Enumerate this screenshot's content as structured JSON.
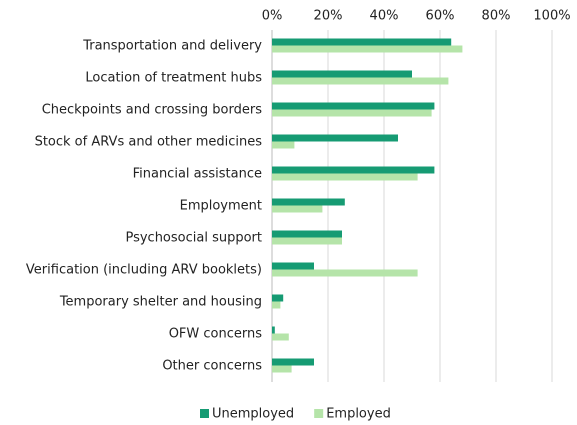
{
  "chart_data": {
    "type": "hbar",
    "categories": [
      "Transportation and delivery",
      "Location of treatment hubs",
      "Checkpoints and crossing borders",
      "Stock of ARVs and other medicines",
      "Financial assistance",
      "Employment",
      "Psychosocial support",
      "Verification (including ARV booklets)",
      "Temporary shelter and housing",
      "OFW concerns",
      "Other concerns"
    ],
    "series": [
      {
        "name": "Unemployed",
        "color": "#169b73",
        "values": [
          64,
          50,
          58,
          45,
          58,
          26,
          25,
          15,
          4,
          1,
          15
        ]
      },
      {
        "name": "Employed",
        "color": "#b5e4a9",
        "values": [
          68,
          63,
          57,
          8,
          52,
          18,
          25,
          52,
          3,
          6,
          7
        ]
      }
    ],
    "xlim": [
      0,
      100
    ],
    "xticks": [
      {
        "value": 0,
        "label": "0%"
      },
      {
        "value": 20,
        "label": "20%"
      },
      {
        "value": 40,
        "label": "40%"
      },
      {
        "value": 60,
        "label": "60%"
      },
      {
        "value": 80,
        "label": "80%"
      },
      {
        "value": 100,
        "label": "100%"
      }
    ],
    "grid": true,
    "legend": "bottom"
  }
}
